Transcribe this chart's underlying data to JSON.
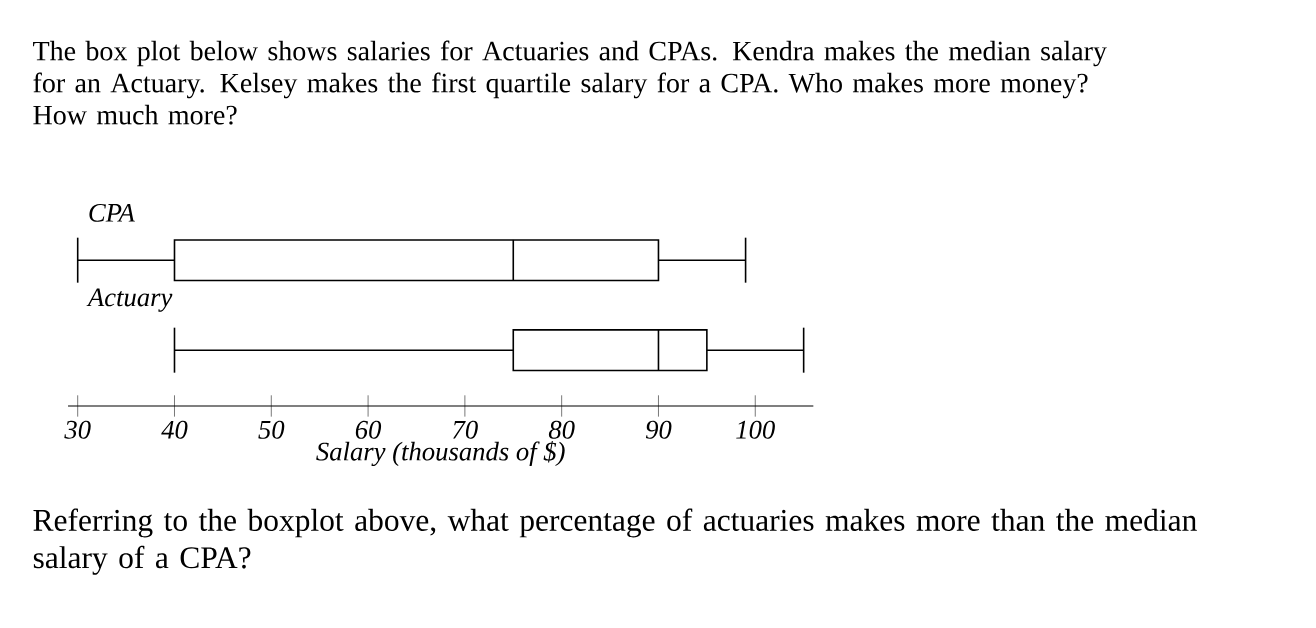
{
  "chart_data": {
    "type": "box",
    "orientation": "horizontal",
    "title": "The box plot below shows salaries for Actuaries and CPAs. Kendra makes the median salary for an Actuary. Kelsey makes the first quartile salary for a CPA.  Who makes more money?  How much more?",
    "categories": [
      "CPA",
      "Actuary"
    ],
    "boxes": [
      {
        "low": 30,
        "q1": 40,
        "median": 75,
        "q3": 90,
        "high": 99
      },
      {
        "low": 40,
        "q1": 75,
        "median": 90,
        "q3": 95,
        "high": 105
      }
    ],
    "xlim": [
      29,
      106
    ],
    "xticks": [
      30,
      40,
      50,
      60,
      70,
      80,
      90,
      100
    ],
    "xlabel": "Salary (thousands of $)",
    "annotations": [
      "Referring to the boxplot above, what percentage of actuaries makes more than the median salary of a CPA?"
    ]
  }
}
